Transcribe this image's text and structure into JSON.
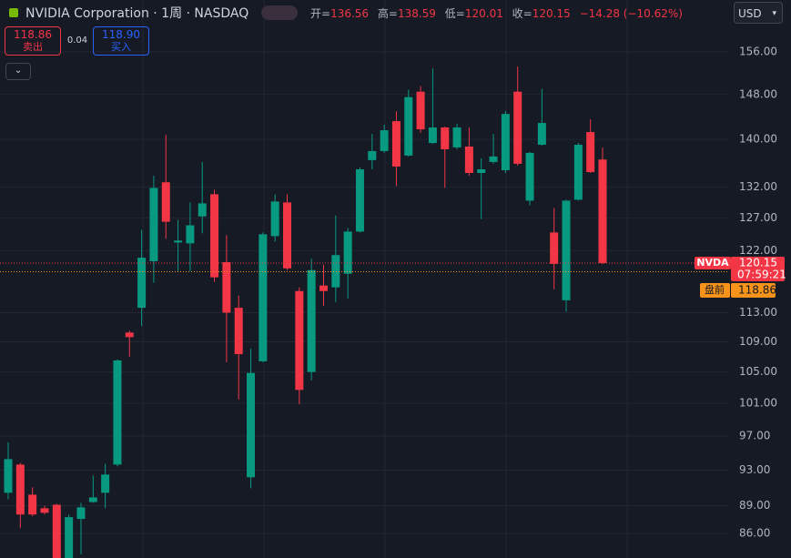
{
  "header": {
    "title": "NVIDIA Corporation · 1周 · NASDAQ",
    "open_label": "开=",
    "high_label": "高=",
    "low_label": "低=",
    "close_label": "收=",
    "change": "−14.28 (−10.62%)",
    "currency": "USD"
  },
  "trade": {
    "sell_price": "118.86",
    "sell_label": "卖出",
    "spread": "0.04",
    "buy_price": "118.90",
    "buy_label": "买入"
  },
  "chart_data": {
    "type": "candlestick",
    "log_scale": true,
    "grid": true,
    "up_color": "#089981",
    "down_color": "#f23645",
    "open": [
      90.43,
      93.64,
      90.22,
      88.71,
      89.1,
      83.2,
      87.55,
      89.4,
      90.43,
      93.64,
      110.25,
      113.68,
      120.42,
      132.77,
      123.25,
      123.11,
      127.29,
      130.82,
      120.28,
      113.68,
      92.18,
      106.4,
      124.22,
      129.5,
      116.06,
      105.0,
      116.85,
      116.59,
      118.57,
      124.92,
      136.46,
      138.0,
      143.2,
      137.23,
      148.52,
      139.38,
      142.08,
      138.62,
      138.77,
      134.31,
      136.15,
      134.77,
      148.52,
      129.79,
      139.08,
      124.78,
      114.74,
      129.94,
      141.28,
      136.56
    ],
    "high": [
      96.26,
      93.85,
      91.04,
      89.0,
      89.21,
      88.03,
      89.31,
      92.38,
      93.74,
      106.64,
      110.5,
      125.19,
      133.85,
      140.8,
      126.72,
      129.5,
      136.15,
      131.56,
      124.36,
      115.4,
      108.06,
      124.78,
      130.82,
      130.82,
      116.59,
      120.81,
      119.89,
      127.44,
      125.47,
      135.23,
      140.96,
      142.56,
      144.96,
      148.87,
      149.57,
      152.87,
      142.24,
      142.72,
      142.08,
      136.77,
      140.96,
      144.96,
      153.22,
      137.85,
      149.03,
      128.62,
      129.94,
      139.38,
      143.52,
      138.59
    ],
    "low": [
      89.7,
      86.57,
      87.84,
      88.03,
      82.6,
      82.8,
      83.8,
      89.31,
      88.71,
      93.43,
      107.0,
      111.13,
      117.25,
      123.8,
      118.96,
      118.96,
      124.64,
      117.38,
      106.29,
      101.48,
      90.94,
      106.29,
      123.39,
      119.1,
      100.89,
      103.91,
      113.94,
      114.48,
      115.0,
      124.78,
      134.92,
      137.69,
      132.15,
      137.08,
      141.12,
      139.23,
      131.85,
      138.31,
      133.85,
      126.86,
      135.85,
      134.31,
      135.54,
      129.06,
      138.92,
      116.32,
      113.13,
      129.79,
      134.31,
      120.01
    ],
    "close": [
      94.27,
      88.03,
      88.03,
      88.22,
      83.1,
      87.74,
      88.81,
      89.91,
      92.49,
      106.52,
      109.63,
      120.94,
      131.85,
      126.44,
      123.53,
      125.89,
      129.35,
      118.04,
      113.0,
      107.35,
      104.88,
      124.5,
      129.65,
      119.36,
      102.7,
      119.1,
      116.06,
      121.34,
      124.92,
      134.92,
      138.0,
      141.6,
      135.38,
      147.52,
      141.76,
      142.08,
      138.31,
      142.08,
      134.31,
      134.92,
      137.08,
      144.48,
      135.85,
      137.69,
      142.88,
      120.02,
      129.79,
      139.08,
      134.46,
      120.15
    ],
    "ylim": [
      83.42,
      166.35
    ],
    "yticks": [
      {
        "value": 86,
        "label": "86.00"
      },
      {
        "value": 89,
        "label": "89.00"
      },
      {
        "value": 93,
        "label": "93.00"
      },
      {
        "value": 97,
        "label": "97.00"
      },
      {
        "value": 101,
        "label": "101.00"
      },
      {
        "value": 105,
        "label": "105.00"
      },
      {
        "value": 109,
        "label": "109.00"
      },
      {
        "value": 113,
        "label": "113.00"
      },
      {
        "value": 122,
        "label": "122.00"
      },
      {
        "value": 127,
        "label": "127.00"
      },
      {
        "value": 132,
        "label": "132.00"
      },
      {
        "value": 140,
        "label": "140.00"
      },
      {
        "value": 148,
        "label": "148.00"
      },
      {
        "value": 156,
        "label": "156.00"
      }
    ],
    "symbol": "NVDA",
    "countdown": "07:59:21",
    "premarket_label": "盘前",
    "premarket_price": 118.86
  }
}
